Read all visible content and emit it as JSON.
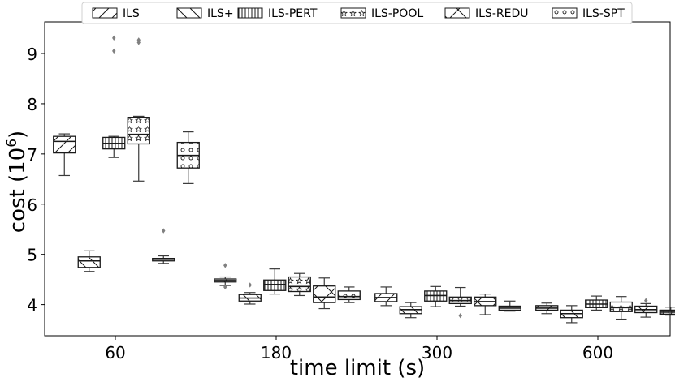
{
  "chart_data": {
    "type": "box",
    "xlabel": "time limit (s)",
    "ylabel_main": "cost (10",
    "ylabel_sup": "6",
    "ylabel_close": ")",
    "categories": [
      "60",
      "180",
      "300",
      "600"
    ],
    "yticks": [
      "4",
      "5",
      "6",
      "7",
      "8",
      "9"
    ],
    "ylim": [
      3.38,
      9.63
    ],
    "grid": false,
    "legend_position": "top",
    "series": [
      {
        "name": "ILS",
        "pattern": "slash",
        "boxes": [
          {
            "min": 6.57,
            "q1": 7.02,
            "median": 7.25,
            "q3": 7.35,
            "max": 7.4,
            "outliers": []
          },
          {
            "min": 4.38,
            "q1": 4.45,
            "median": 4.48,
            "q3": 4.51,
            "max": 4.55,
            "outliers": [
              4.35,
              4.78
            ]
          },
          {
            "min": 3.98,
            "q1": 4.06,
            "median": 4.14,
            "q3": 4.22,
            "max": 4.35,
            "outliers": []
          },
          {
            "min": 3.82,
            "q1": 3.89,
            "median": 3.93,
            "q3": 3.98,
            "max": 4.03,
            "outliers": []
          }
        ]
      },
      {
        "name": "ILS+",
        "pattern": "backslash",
        "boxes": [
          {
            "min": 4.66,
            "q1": 4.74,
            "median": 4.87,
            "q3": 4.95,
            "max": 5.07,
            "outliers": []
          },
          {
            "min": 4.01,
            "q1": 4.07,
            "median": 4.13,
            "q3": 4.2,
            "max": 4.24,
            "outliers": [
              4.39
            ]
          },
          {
            "min": 3.74,
            "q1": 3.82,
            "median": 3.9,
            "q3": 3.96,
            "max": 4.04,
            "outliers": []
          },
          {
            "min": 3.64,
            "q1": 3.74,
            "median": 3.82,
            "q3": 3.89,
            "max": 3.98,
            "outliers": []
          }
        ]
      },
      {
        "name": "ILS-PERT",
        "pattern": "vertical",
        "boxes": [
          {
            "min": 6.93,
            "q1": 7.1,
            "median": 7.21,
            "q3": 7.33,
            "max": 7.35,
            "outliers": [
              9.05,
              9.31
            ]
          },
          {
            "min": 4.21,
            "q1": 4.28,
            "median": 4.4,
            "q3": 4.49,
            "max": 4.71,
            "outliers": []
          },
          {
            "min": 3.96,
            "q1": 4.07,
            "median": 4.18,
            "q3": 4.27,
            "max": 4.36,
            "outliers": []
          },
          {
            "min": 3.89,
            "q1": 3.94,
            "median": 4.01,
            "q3": 4.09,
            "max": 4.17,
            "outliers": []
          }
        ]
      },
      {
        "name": "ILS-POOL",
        "pattern": "star",
        "boxes": [
          {
            "min": 6.46,
            "q1": 7.2,
            "median": 7.39,
            "q3": 7.73,
            "max": 7.75,
            "outliers": [
              9.22,
              9.27
            ]
          },
          {
            "min": 4.18,
            "q1": 4.26,
            "median": 4.36,
            "q3": 4.55,
            "max": 4.62,
            "outliers": []
          },
          {
            "min": 3.97,
            "q1": 4.02,
            "median": 4.08,
            "q3": 4.15,
            "max": 4.34,
            "outliers": [
              3.78
            ]
          },
          {
            "min": 3.71,
            "q1": 3.86,
            "median": 3.94,
            "q3": 4.05,
            "max": 4.16,
            "outliers": []
          }
        ]
      },
      {
        "name": "ILS-REDU",
        "pattern": "cross",
        "boxes": [
          {
            "min": null,
            "q1": null,
            "median": null,
            "q3": null,
            "max": null,
            "outliers": []
          },
          {
            "min": 3.92,
            "q1": 4.04,
            "median": 4.15,
            "q3": 4.37,
            "max": 4.53,
            "outliers": []
          },
          {
            "min": 3.8,
            "q1": 3.98,
            "median": 4.06,
            "q3": 4.15,
            "max": 4.21,
            "outliers": []
          },
          {
            "min": 3.75,
            "q1": 3.84,
            "median": 3.9,
            "q3": 3.97,
            "max": 4.02,
            "outliers": [
              4.08
            ]
          }
        ]
      },
      {
        "name": "ILS-SPT",
        "pattern": "circle",
        "boxes": [
          {
            "min": 6.41,
            "q1": 6.72,
            "median": 6.97,
            "q3": 7.23,
            "max": 7.44,
            "outliers": []
          },
          {
            "min": 4.04,
            "q1": 4.1,
            "median": 4.16,
            "q3": 4.27,
            "max": 4.35,
            "outliers": []
          },
          {
            "min": 3.87,
            "q1": 3.89,
            "median": 3.93,
            "q3": 3.97,
            "max": 4.07,
            "outliers": []
          },
          {
            "min": 3.79,
            "q1": 3.81,
            "median": 3.85,
            "q3": 3.89,
            "max": 3.95,
            "outliers": []
          }
        ]
      }
    ],
    "extra_boxes": [
      {
        "group": "60",
        "slot": 4,
        "pattern": "circle",
        "min": 4.82,
        "q1": 4.87,
        "median": 4.9,
        "q3": 4.92,
        "max": 4.97,
        "outliers": [
          5.47
        ]
      }
    ],
    "colors": {
      "axis": "#000000",
      "box_stroke": "#1a1a1a",
      "outlier": "#808080",
      "whisker": "#3a3a3a"
    }
  }
}
